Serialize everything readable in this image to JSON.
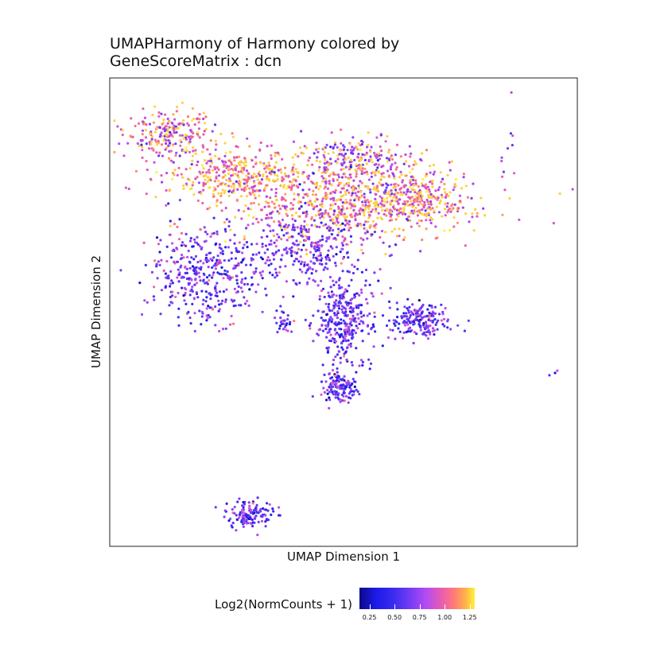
{
  "chart_data": {
    "type": "scatter",
    "title": "UMAPHarmony of Harmony colored by\nGeneScoreMatrix : dcn",
    "xlabel": "UMAP Dimension 1",
    "ylabel": "UMAP Dimension 2",
    "grid": false,
    "legend": {
      "placement": "bottom",
      "title": "Log2(NormCounts + 1)",
      "ticks": [
        "0.25",
        "0.50",
        "0.75",
        "1.00",
        "1.25"
      ],
      "tick_values": [
        0.25,
        0.5,
        0.75,
        1.0,
        1.25
      ],
      "range": [
        0.15,
        1.3
      ]
    },
    "clusters": [
      {
        "id": "arm-top-left",
        "center": [
          0.13,
          0.88
        ],
        "spread": [
          0.05,
          0.025
        ],
        "count": 220,
        "value": 0.92
      },
      {
        "id": "arm-upper",
        "center": [
          0.27,
          0.79
        ],
        "spread": [
          0.09,
          0.03
        ],
        "count": 380,
        "value": 1.0
      },
      {
        "id": "center-band",
        "center": [
          0.52,
          0.73
        ],
        "spread": [
          0.13,
          0.04
        ],
        "count": 700,
        "value": 0.95
      },
      {
        "id": "center-top",
        "center": [
          0.53,
          0.82
        ],
        "spread": [
          0.06,
          0.03
        ],
        "count": 260,
        "value": 0.85
      },
      {
        "id": "right-arm",
        "center": [
          0.67,
          0.75
        ],
        "spread": [
          0.05,
          0.025
        ],
        "count": 160,
        "value": 0.98
      },
      {
        "id": "center-mid",
        "center": [
          0.42,
          0.63
        ],
        "spread": [
          0.07,
          0.04
        ],
        "count": 300,
        "value": 0.68
      },
      {
        "id": "left-lobe",
        "center": [
          0.2,
          0.58
        ],
        "spread": [
          0.06,
          0.05
        ],
        "count": 380,
        "value": 0.66
      },
      {
        "id": "lower-stem",
        "center": [
          0.5,
          0.48
        ],
        "spread": [
          0.03,
          0.05
        ],
        "count": 320,
        "value": 0.62
      },
      {
        "id": "stem-bottom",
        "center": [
          0.49,
          0.34
        ],
        "spread": [
          0.02,
          0.015
        ],
        "count": 120,
        "value": 0.6
      },
      {
        "id": "right-lobe",
        "center": [
          0.66,
          0.48
        ],
        "spread": [
          0.03,
          0.02
        ],
        "count": 180,
        "value": 0.6
      },
      {
        "id": "small-left",
        "center": [
          0.37,
          0.48
        ],
        "spread": [
          0.01,
          0.015
        ],
        "count": 30,
        "value": 0.65
      },
      {
        "id": "bottom-island",
        "center": [
          0.3,
          0.07
        ],
        "spread": [
          0.025,
          0.015
        ],
        "count": 130,
        "value": 0.6
      },
      {
        "id": "outlier-right-top",
        "center": [
          0.85,
          0.82
        ],
        "spread": [
          0.01,
          0.06
        ],
        "count": 10,
        "value": 0.8
      },
      {
        "id": "outlier-right-low",
        "center": [
          0.95,
          0.37
        ],
        "spread": [
          0.005,
          0.005
        ],
        "count": 3,
        "value": 0.6
      }
    ],
    "xlim": [
      0,
      1
    ],
    "ylim": [
      0,
      1
    ]
  }
}
